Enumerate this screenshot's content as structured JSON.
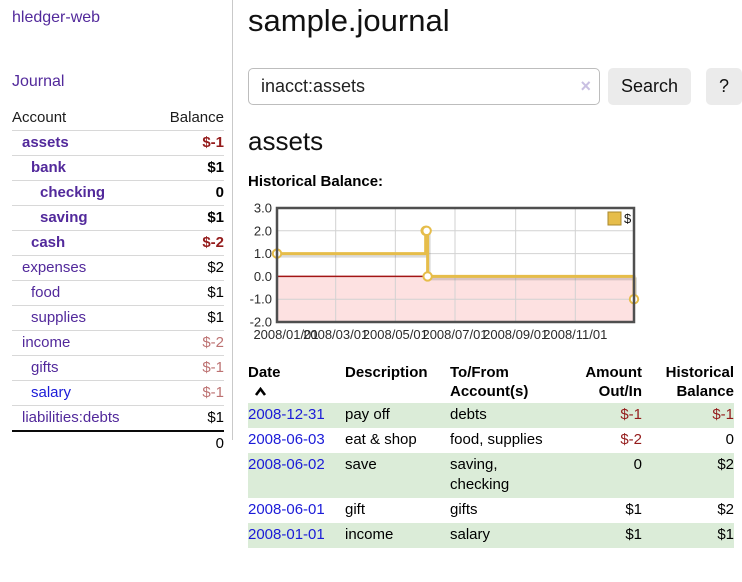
{
  "sidebar": {
    "brand": "hledger-web",
    "journal_link": "Journal",
    "accounts": {
      "header_account": "Account",
      "header_balance": "Balance",
      "rows": [
        {
          "name": "assets",
          "depth": 1,
          "bold": true,
          "link": "visited",
          "balance": "$-1",
          "balance_tone": "strong"
        },
        {
          "name": "bank",
          "depth": 2,
          "bold": true,
          "link": "visited",
          "balance": "$1",
          "balance_tone": "normal"
        },
        {
          "name": "checking",
          "depth": 3,
          "bold": true,
          "link": "visited",
          "balance": "0",
          "balance_tone": "normal"
        },
        {
          "name": "saving",
          "depth": 3,
          "bold": true,
          "link": "visited",
          "balance": "$1",
          "balance_tone": "normal"
        },
        {
          "name": "cash",
          "depth": 2,
          "bold": true,
          "link": "visited",
          "balance": "$-2",
          "balance_tone": "strong"
        },
        {
          "name": "expenses",
          "depth": 1,
          "bold": false,
          "link": "visited",
          "balance": "$2",
          "balance_tone": "normal"
        },
        {
          "name": "food",
          "depth": 2,
          "bold": false,
          "link": "visited",
          "balance": "$1",
          "balance_tone": "normal"
        },
        {
          "name": "supplies",
          "depth": 2,
          "bold": false,
          "link": "visited",
          "balance": "$1",
          "balance_tone": "normal"
        },
        {
          "name": "income",
          "depth": 1,
          "bold": false,
          "link": "visited",
          "balance": "$-2",
          "balance_tone": "soft"
        },
        {
          "name": "gifts",
          "depth": 2,
          "bold": false,
          "link": "visited",
          "balance": "$-1",
          "balance_tone": "soft"
        },
        {
          "name": "salary",
          "depth": 2,
          "bold": false,
          "link": "unvisited",
          "balance": "$-1",
          "balance_tone": "soft"
        },
        {
          "name": "liabilities:debts",
          "depth": 1,
          "bold": false,
          "link": "visited",
          "balance": "$1",
          "balance_tone": "normal"
        }
      ],
      "total": "0"
    }
  },
  "main": {
    "title": "sample.journal",
    "search": {
      "value": "inacct:assets",
      "clear_icon": "×",
      "button_label": "Search",
      "help_label": "?"
    },
    "account_heading": "assets",
    "chart_label": "Historical Balance:"
  },
  "chart_data": {
    "type": "line",
    "title": "Historical Balance",
    "step": true,
    "series": [
      {
        "name": "$",
        "color": "#e6bd4a",
        "points": [
          [
            "2008-01-01",
            1
          ],
          [
            "2008-06-01",
            2
          ],
          [
            "2008-06-02",
            2
          ],
          [
            "2008-06-03",
            0
          ],
          [
            "2008-12-31",
            -1
          ]
        ]
      }
    ],
    "xlim": [
      "2008-01-01",
      "2008-12-31"
    ],
    "ylim": [
      -2,
      3
    ],
    "yticks": [
      {
        "label": "3.0",
        "value": 3
      },
      {
        "label": "2.0",
        "value": 2
      },
      {
        "label": "1.0",
        "value": 1
      },
      {
        "label": "0.0",
        "value": 0
      },
      {
        "label": "-1.0",
        "value": -1
      },
      {
        "label": "-2.0",
        "value": -2
      }
    ],
    "xticks": [
      {
        "label": "2008/01/01",
        "date": "2008-01-01"
      },
      {
        "label": "2008/03/01",
        "date": "2008-03-01"
      },
      {
        "label": "2008/05/01",
        "date": "2008-05-01"
      },
      {
        "label": "2008/07/01",
        "date": "2008-07-01"
      },
      {
        "label": "2008/09/01",
        "date": "2008-09-01"
      },
      {
        "label": "2008/11/01",
        "date": "2008-11-01"
      }
    ],
    "legend": {
      "label": "$",
      "position": "top-right",
      "swatch_color": "#e6bd4a"
    },
    "grid": true,
    "grid_color": "#d2d2d2",
    "border_color": "#4f4f4f",
    "zero_line_color": "#a31515",
    "negative_region_color": "#fde1e1"
  },
  "register": {
    "headers": {
      "date": "Date",
      "sort_direction": "ascending",
      "description": "Description",
      "tofrom_line1": "To/From",
      "tofrom_line2": "Account(s)",
      "amount_line1": "Amount",
      "amount_line2": "Out/In",
      "balance_line1": "Historical",
      "balance_line2": "Balance"
    },
    "rows": [
      {
        "date": "2008-12-31",
        "description": "pay off",
        "accounts_lines": [
          "debts"
        ],
        "amount": "$-1",
        "amount_tone": "strong",
        "balance": "$-1",
        "balance_tone": "strong"
      },
      {
        "date": "2008-06-03",
        "description": "eat & shop",
        "accounts_lines": [
          "food, supplies"
        ],
        "amount": "$-2",
        "amount_tone": "strong",
        "balance": "0",
        "balance_tone": "normal"
      },
      {
        "date": "2008-06-02",
        "description": "save",
        "accounts_lines": [
          "saving,",
          "checking"
        ],
        "amount": "0",
        "amount_tone": "normal",
        "balance": "$2",
        "balance_tone": "normal"
      },
      {
        "date": "2008-06-01",
        "description": "gift",
        "accounts_lines": [
          "gifts"
        ],
        "amount": "$1",
        "amount_tone": "normal",
        "balance": "$2",
        "balance_tone": "normal"
      },
      {
        "date": "2008-01-01",
        "description": "income",
        "accounts_lines": [
          "salary"
        ],
        "amount": "$1",
        "amount_tone": "normal",
        "balance": "$1",
        "balance_tone": "normal"
      }
    ]
  }
}
